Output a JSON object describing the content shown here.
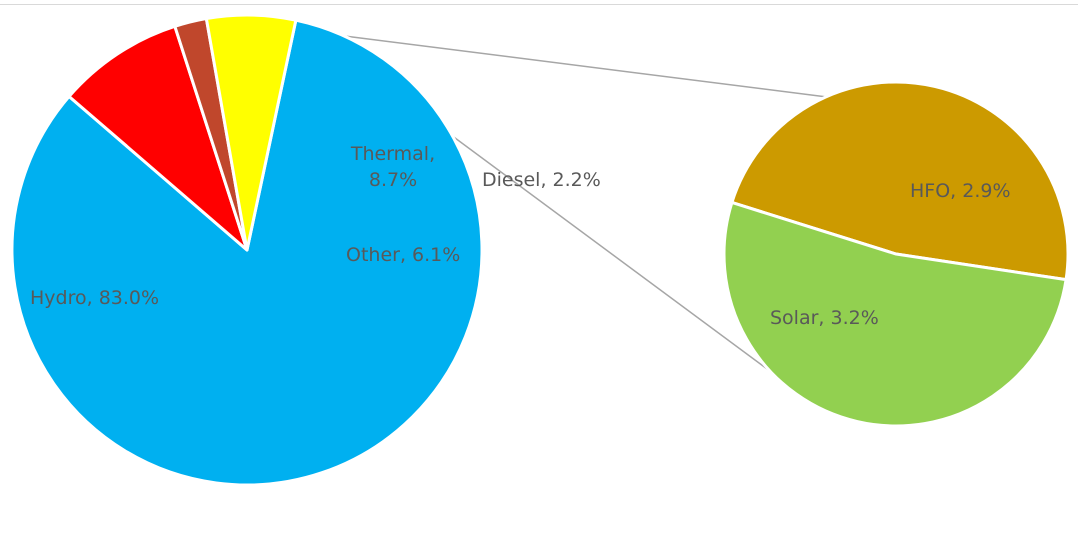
{
  "chart_data": {
    "type": "pie",
    "subtype": "pie-of-pie",
    "title": "",
    "main_pie": {
      "slices": [
        {
          "name": "Hydro",
          "value": 83.0,
          "label": "Hydro, 83.0%",
          "color": "#00b0f0"
        },
        {
          "name": "Thermal",
          "value": 8.7,
          "label_line1": "Thermal,",
          "label_line2": "8.7%",
          "color": "#ff0000"
        },
        {
          "name": "Diesel",
          "value": 2.2,
          "label": "Diesel, 2.2%",
          "color": "#c0472c"
        },
        {
          "name": "Other",
          "value": 6.1,
          "label": "Other, 6.1%",
          "color": "#ffff00"
        }
      ]
    },
    "secondary_pie": {
      "parent": "Other",
      "slices": [
        {
          "name": "HFO",
          "value": 2.9,
          "label": "HFO, 2.9%",
          "color": "#cc9a00"
        },
        {
          "name": "Solar",
          "value": 3.2,
          "label": "Solar, 3.2%",
          "color": "#92d050"
        }
      ]
    },
    "connector_color": "#a6a6a6",
    "slice_border_color": "#ffffff"
  }
}
